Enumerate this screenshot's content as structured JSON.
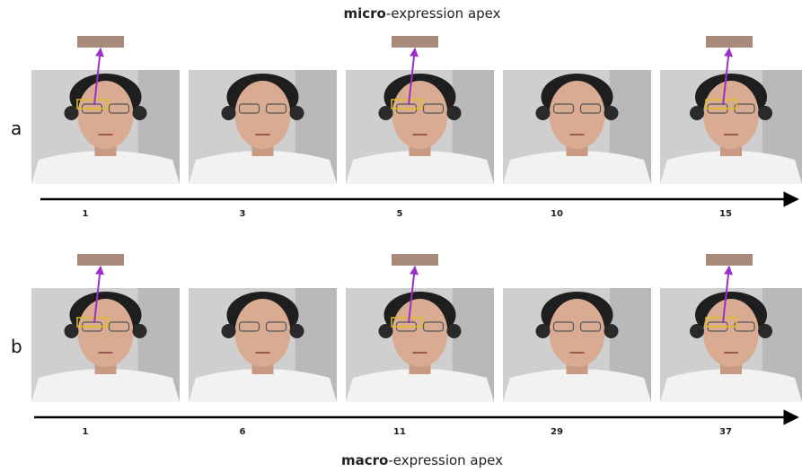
{
  "title_top": {
    "bold": "micro",
    "rest": "-expression apex"
  },
  "rows": [
    {
      "label": "a",
      "frames": [
        1,
        3,
        5,
        10,
        15
      ]
    },
    {
      "label": "b",
      "frames": [
        1,
        6,
        11,
        29,
        37
      ]
    }
  ],
  "title_bottom": {
    "bold": "macro",
    "rest": "-expression apex"
  }
}
